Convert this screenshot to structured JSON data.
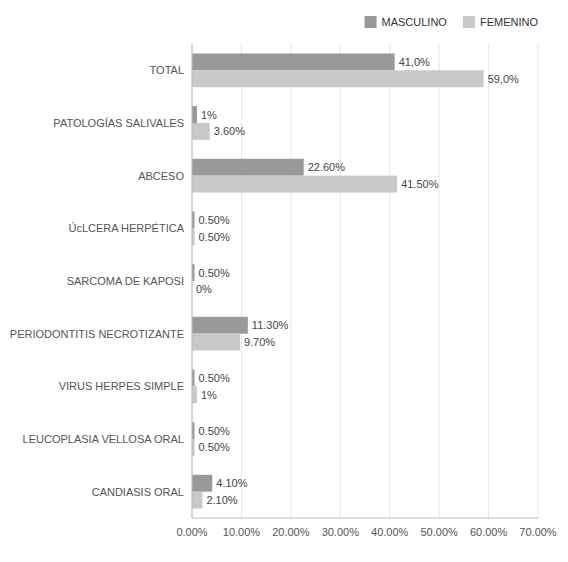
{
  "chart_data": {
    "type": "bar",
    "orientation": "horizontal",
    "categories": [
      "CANDIASIS ORAL",
      "LEUCOPLASIA VELLOSA ORAL",
      "VIRUS HERPES SIMPLE",
      "PERIODONTITIS NECROTIZANTE",
      "SARCOMA DE KAPOSI",
      "ÚcLCERA HERPÉTICA",
      "ABCESO",
      "PATOLOGÍAS SALIVALES",
      "TOTAL"
    ],
    "series": [
      {
        "name": "MASCULINO",
        "color": "#999999",
        "values": [
          4.1,
          0.5,
          0.5,
          11.3,
          0.5,
          0.5,
          22.6,
          1.0,
          41.0
        ],
        "value_labels": [
          "4.10%",
          "0.50%",
          "0.50%",
          "11.30%",
          "0.50%",
          "0.50%",
          "22.60%",
          "1%",
          "41,0%"
        ]
      },
      {
        "name": "FEMENINO",
        "color": "#c8c8c8",
        "values": [
          2.1,
          0.5,
          1.0,
          9.7,
          0.0,
          0.5,
          41.5,
          3.6,
          59.0
        ],
        "value_labels": [
          "2.10%",
          "0.50%",
          "1%",
          "9.70%",
          "0%",
          "0.50%",
          "41.50%",
          "3.60%",
          "59,0%"
        ]
      }
    ],
    "xlim": [
      0,
      70
    ],
    "xticks": [
      {
        "value": 0,
        "label": "0.00%"
      },
      {
        "value": 10,
        "label": "10.00%"
      },
      {
        "value": 20,
        "label": "20.00%"
      },
      {
        "value": 30,
        "label": "30.00%"
      },
      {
        "value": 40,
        "label": "40.00%"
      },
      {
        "value": 50,
        "label": "50.00%"
      },
      {
        "value": 60,
        "label": "60.00%"
      },
      {
        "value": 70,
        "label": "70.00%"
      }
    ],
    "grid": true,
    "legend": "top",
    "data_labels": true
  }
}
